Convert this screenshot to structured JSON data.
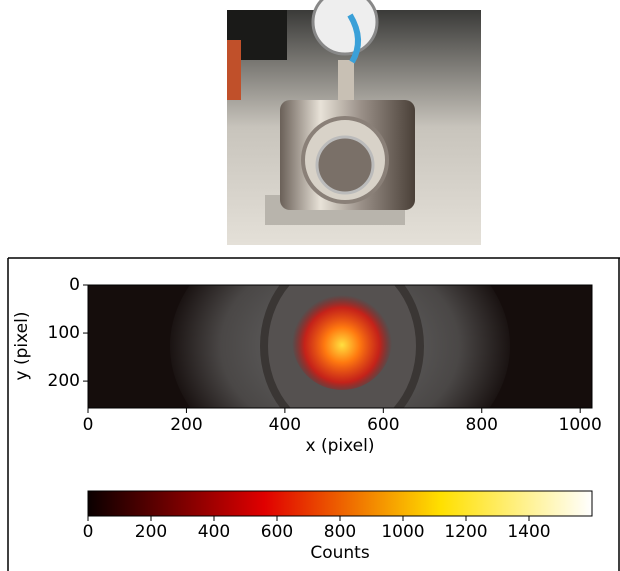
{
  "chart_data": {
    "type": "image",
    "xlabel": "x (pixel)",
    "ylabel": "y (pixel)",
    "xlim": [
      0,
      1024
    ],
    "ylim": [
      256,
      0
    ],
    "xticks": [
      0,
      200,
      400,
      600,
      800,
      1000
    ],
    "yticks": [
      0,
      100,
      200
    ],
    "colorbar": {
      "label": "Counts",
      "colormap": "hot",
      "lim": [
        0,
        1600
      ],
      "ticks": [
        0,
        200,
        400,
        600,
        800,
        1000,
        1200,
        1400
      ]
    }
  }
}
